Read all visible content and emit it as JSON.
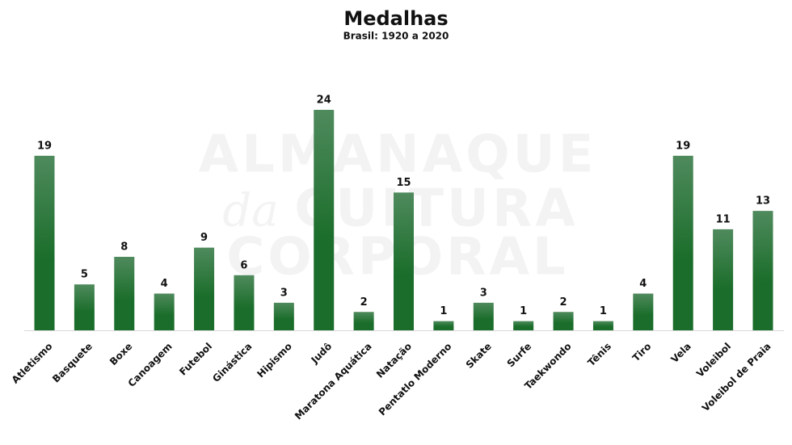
{
  "chart_data": {
    "type": "bar",
    "title": "Medalhas",
    "subtitle": "Brasil: 1920 a 2020",
    "watermark": [
      "ALMANAQUE",
      "da",
      "CULTURA",
      "CORPORAL"
    ],
    "categories": [
      "Atletismo",
      "Basquete",
      "Boxe",
      "Canoagem",
      "Futebol",
      "Ginástica",
      "Hipismo",
      "Judô",
      "Maratona Aquática",
      "Natação",
      "Pentatlo Moderno",
      "Skate",
      "Surfe",
      "Taekwondo",
      "Tênis",
      "Tiro",
      "Vela",
      "Voleibol",
      "Voleibol de Praia"
    ],
    "values": [
      19,
      5,
      8,
      4,
      9,
      6,
      3,
      24,
      2,
      15,
      1,
      3,
      1,
      2,
      1,
      4,
      19,
      11,
      13
    ],
    "color": "#1a6d2a"
  }
}
